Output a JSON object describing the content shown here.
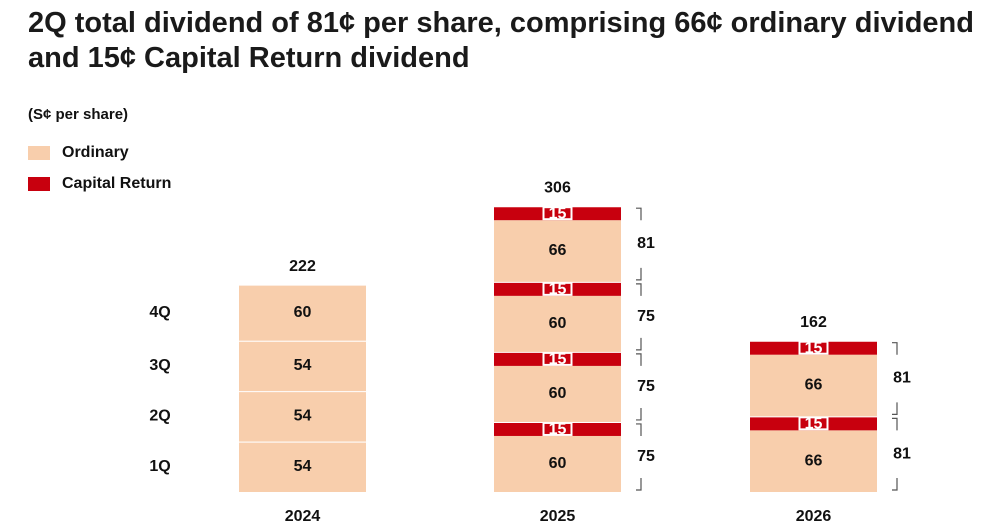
{
  "title": "2Q total dividend of 81¢ per share, comprising 66¢ ordinary dividend and 15¢ Capital Return dividend",
  "unit_label": "(S¢ per share)",
  "legend": [
    {
      "label": "Ordinary",
      "color": "#f8ceac"
    },
    {
      "label": "Capital Return",
      "color": "#c8000e"
    }
  ],
  "colors": {
    "ordinary": "#f8ceac",
    "capital_return": "#c8000e",
    "text": "#111111",
    "bracket": "#555555"
  },
  "chart_data": {
    "type": "bar",
    "stacked": true,
    "quarter_labels": [
      "1Q",
      "2Q",
      "3Q",
      "4Q"
    ],
    "categories": [
      "2024",
      "2025",
      "2026"
    ],
    "totals": [
      222,
      306,
      162
    ],
    "series": [
      {
        "name": "Ordinary",
        "values": [
          [
            54,
            54,
            54,
            60
          ],
          [
            60,
            60,
            60,
            66
          ],
          [
            66,
            66
          ]
        ]
      },
      {
        "name": "Capital Return",
        "values": [
          [
            0,
            0,
            0,
            0
          ],
          [
            15,
            15,
            15,
            15
          ],
          [
            15,
            15
          ]
        ]
      }
    ],
    "quarter_totals": [
      [],
      [
        75,
        75,
        75,
        81
      ],
      [
        81,
        81
      ]
    ]
  }
}
